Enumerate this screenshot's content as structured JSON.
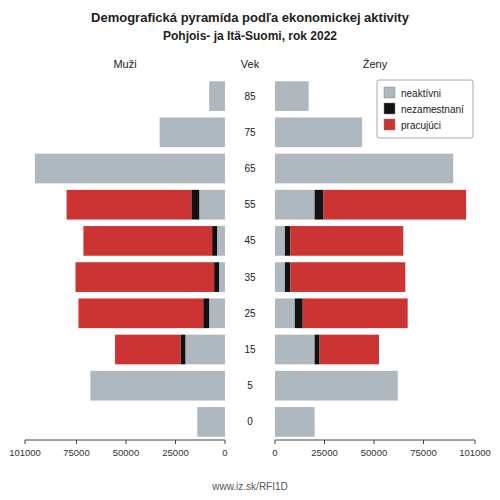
{
  "chart_data": [
    {
      "type": "bar",
      "orientation": "horizontal",
      "stacked": true,
      "title": "Demografická pyramída podľa ekonomickej aktivity",
      "subtitle": "Pohjois- ja Itä-Suomi, rok 2022",
      "xlabel": "Muži",
      "ylabel": "Vek",
      "annotations": [
        "www.iz.sk/RFI1D"
      ],
      "categories": [
        "0",
        "5",
        "15",
        "25",
        "35",
        "45",
        "55",
        "65",
        "75",
        "85"
      ],
      "series": [
        {
          "color": "#b0b8bf",
          "values": [
            14000,
            68000,
            20000,
            8000,
            3000,
            4000,
            13000,
            96000,
            33000,
            8000
          ]
        },
        {
          "color": "#111111",
          "values": [
            0,
            0,
            2500,
            3000,
            2500,
            2500,
            4000,
            0,
            0,
            0
          ]
        },
        {
          "color": "#cc3333",
          "values": [
            0,
            0,
            33000,
            63000,
            70000,
            65000,
            63000,
            0,
            0,
            0
          ]
        }
      ],
      "xlim": [
        101000,
        0
      ],
      "xticks": [
        0,
        25000,
        50000,
        75000,
        101000
      ]
    },
    {
      "type": "bar",
      "orientation": "horizontal",
      "stacked": true,
      "xlabel": "Ženy",
      "legend": "upper right",
      "series": [
        {
          "name": "neaktívni",
          "color": "#b0b8bf",
          "values": [
            20000,
            62000,
            20000,
            10000,
            5000,
            5000,
            20000,
            90000,
            44000,
            17000
          ]
        },
        {
          "name": "nezamestnaní",
          "color": "#111111",
          "values": [
            0,
            0,
            2500,
            4000,
            2800,
            2800,
            4500,
            0,
            0,
            0
          ]
        },
        {
          "name": "pracujúci",
          "color": "#cc3333",
          "values": [
            0,
            0,
            30000,
            53000,
            58000,
            57000,
            72000,
            0,
            0,
            0
          ]
        }
      ],
      "xlim": [
        0,
        101000
      ],
      "xticks": [
        0,
        25000,
        50000,
        75000,
        101000
      ]
    }
  ]
}
